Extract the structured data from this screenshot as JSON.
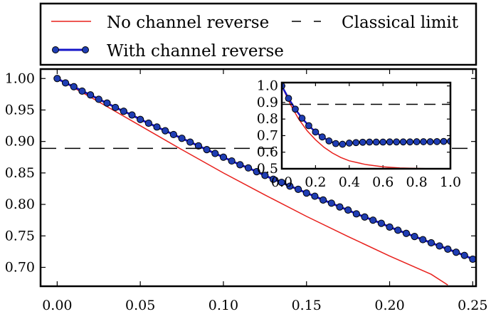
{
  "chart_data": {
    "main": {
      "type": "line",
      "xlim": [
        -0.01,
        0.252
      ],
      "ylim": [
        0.67,
        1.015
      ],
      "x_ticks": [
        0.0,
        0.05,
        0.1,
        0.15,
        0.2,
        0.25
      ],
      "y_ticks": [
        0.7,
        0.75,
        0.8,
        0.85,
        0.9,
        0.95,
        1.0
      ],
      "x_tick_labels": [
        "0.00",
        "0.05",
        "0.10",
        "0.15",
        "0.20",
        "0.25"
      ],
      "y_tick_labels": [
        "0.70",
        "0.75",
        "0.80",
        "0.85",
        "0.90",
        "0.95",
        "1.00"
      ],
      "grid": false,
      "series": [
        {
          "name": "No channel reverse",
          "style": "line",
          "color": "#e8201c",
          "x": [
            0.0,
            0.025,
            0.05,
            0.075,
            0.1,
            0.125,
            0.15,
            0.175,
            0.2,
            0.225,
            0.235
          ],
          "y": [
            1.0,
            0.963,
            0.925,
            0.887,
            0.85,
            0.815,
            0.781,
            0.749,
            0.718,
            0.689,
            0.672
          ]
        },
        {
          "name": "With channel reverse",
          "style": "line-markers",
          "color": "#1515c8",
          "marker_color": "#1f3db4",
          "x": [
            0.0,
            0.005,
            0.01,
            0.015,
            0.02,
            0.025,
            0.03,
            0.035,
            0.04,
            0.045,
            0.05,
            0.055,
            0.06,
            0.065,
            0.07,
            0.075,
            0.08,
            0.085,
            0.09,
            0.095,
            0.1,
            0.105,
            0.11,
            0.115,
            0.12,
            0.125,
            0.13,
            0.135,
            0.14,
            0.145,
            0.15,
            0.155,
            0.16,
            0.165,
            0.17,
            0.175,
            0.18,
            0.185,
            0.19,
            0.195,
            0.2,
            0.205,
            0.21,
            0.215,
            0.22,
            0.225,
            0.23,
            0.235,
            0.24,
            0.245,
            0.25
          ],
          "y": [
            1.0,
            0.993,
            0.987,
            0.98,
            0.974,
            0.967,
            0.961,
            0.954,
            0.948,
            0.942,
            0.935,
            0.929,
            0.923,
            0.917,
            0.911,
            0.905,
            0.899,
            0.893,
            0.887,
            0.881,
            0.875,
            0.869,
            0.863,
            0.858,
            0.852,
            0.846,
            0.84,
            0.835,
            0.829,
            0.824,
            0.818,
            0.813,
            0.807,
            0.802,
            0.796,
            0.791,
            0.785,
            0.78,
            0.775,
            0.77,
            0.764,
            0.759,
            0.754,
            0.749,
            0.744,
            0.739,
            0.734,
            0.729,
            0.724,
            0.719,
            0.713
          ]
        },
        {
          "name": "Classical limit",
          "style": "dashed",
          "color": "#000000",
          "y": 0.889
        }
      ]
    },
    "inset": {
      "type": "line",
      "xlim": [
        0.0,
        1.0
      ],
      "ylim": [
        0.5,
        1.02
      ],
      "x_ticks": [
        0.0,
        0.2,
        0.4,
        0.6,
        0.8,
        1.0
      ],
      "y_ticks": [
        0.5,
        0.6,
        0.7,
        0.8,
        0.9,
        1.0
      ],
      "x_tick_labels": [
        "0.0",
        "0.2",
        "0.4",
        "0.6",
        "0.8",
        "1.0"
      ],
      "y_tick_labels": [
        "0.5",
        "0.6",
        "0.7",
        "0.8",
        "0.9",
        "1.0"
      ],
      "grid": false,
      "series": [
        {
          "name": "No channel reverse",
          "style": "line",
          "color": "#e8201c",
          "x": [
            0.0,
            0.05,
            0.1,
            0.15,
            0.2,
            0.25,
            0.3,
            0.35,
            0.4,
            0.5,
            0.6,
            0.7,
            0.8,
            0.9,
            1.0
          ],
          "y": [
            1.0,
            0.89,
            0.8,
            0.73,
            0.675,
            0.63,
            0.595,
            0.568,
            0.548,
            0.525,
            0.512,
            0.505,
            0.502,
            0.5,
            0.5
          ]
        },
        {
          "name": "With channel reverse",
          "style": "line-markers",
          "color": "#1515c8",
          "marker_color": "#1f3db4",
          "x": [
            0.0,
            0.04,
            0.08,
            0.12,
            0.16,
            0.2,
            0.24,
            0.28,
            0.32,
            0.36,
            0.4,
            0.44,
            0.48,
            0.52,
            0.56,
            0.6,
            0.64,
            0.68,
            0.72,
            0.76,
            0.8,
            0.84,
            0.88,
            0.92,
            0.96,
            1.0
          ],
          "y": [
            1.0,
            0.925,
            0.86,
            0.805,
            0.76,
            0.722,
            0.692,
            0.668,
            0.652,
            0.648,
            0.655,
            0.658,
            0.66,
            0.661,
            0.661,
            0.661,
            0.662,
            0.662,
            0.662,
            0.662,
            0.663,
            0.663,
            0.663,
            0.664,
            0.665,
            0.666
          ]
        },
        {
          "name": "Classical limit",
          "style": "dashed",
          "color": "#000000",
          "y": 0.889
        }
      ]
    },
    "legend": {
      "placement": "top",
      "entries": [
        {
          "label": "No channel reverse",
          "style": "line",
          "color": "#e8201c"
        },
        {
          "label": "Classical limit",
          "style": "dashed",
          "color": "#000000"
        },
        {
          "label": "With channel reverse",
          "style": "line-markers",
          "color": "#1515c8"
        }
      ]
    }
  }
}
